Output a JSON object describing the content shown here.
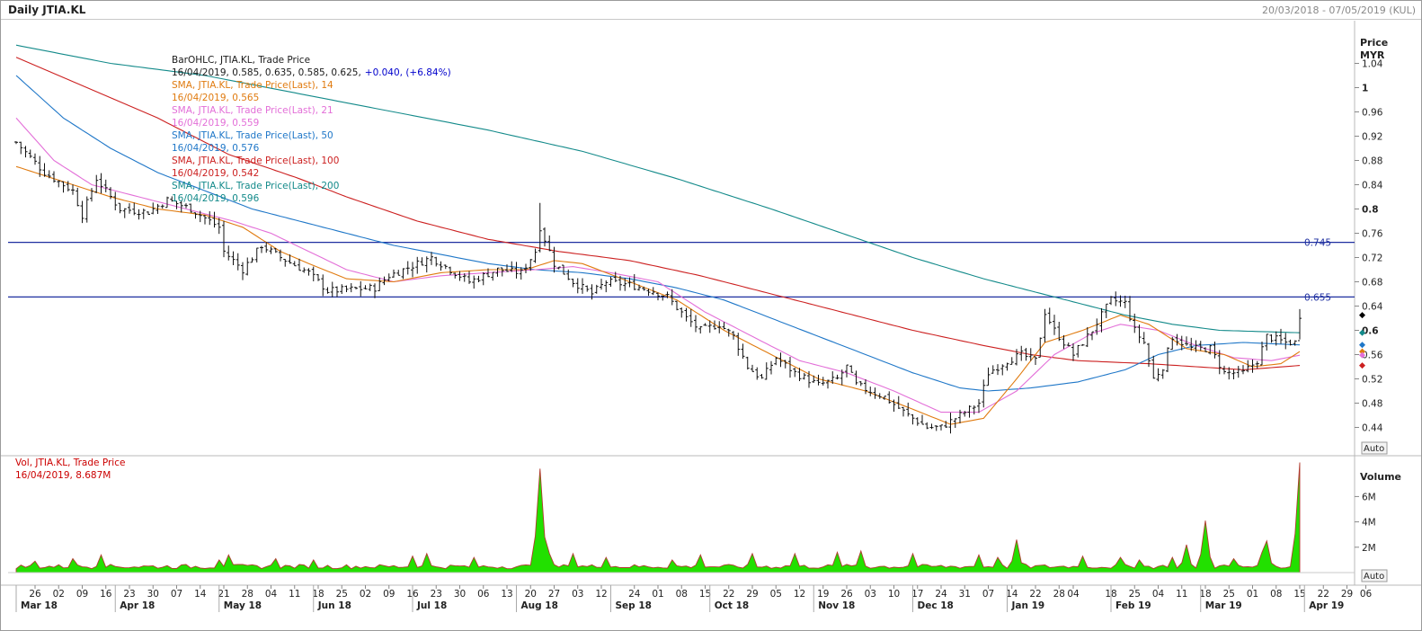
{
  "header": {
    "title": "Daily JTIA.KL",
    "range": "20/03/2018 - 07/05/2019 (KUL)"
  },
  "price_panel": {
    "axis_title": "Price",
    "axis_unit": "MYR",
    "auto_label": "Auto",
    "legend": [
      {
        "text": "BarOHLC, JTIA.KL, Trade Price",
        "color": "#1a1a1a"
      },
      {
        "text": "16/04/2019, 0.585, 0.635, 0.585, 0.625,",
        "color": "#1a1a1a",
        "extra": "+0.040, (+6.84%)",
        "extra_color": "#0000cc"
      },
      {
        "text": "SMA, JTIA.KL, Trade Price(Last), 14",
        "color": "#e07b10"
      },
      {
        "text": "16/04/2019, 0.565",
        "color": "#e07b10"
      },
      {
        "text": "SMA, JTIA.KL, Trade Price(Last), 21",
        "color": "#e36fd8"
      },
      {
        "text": "16/04/2019, 0.559",
        "color": "#e36fd8"
      },
      {
        "text": "SMA, JTIA.KL, Trade Price(Last), 50",
        "color": "#1f77c8"
      },
      {
        "text": "16/04/2019, 0.576",
        "color": "#1f77c8"
      },
      {
        "text": "SMA, JTIA.KL, Trade Price(Last), 100",
        "color": "#cc2020"
      },
      {
        "text": "16/04/2019, 0.542",
        "color": "#cc2020"
      },
      {
        "text": "SMA, JTIA.KL, Trade Price(Last), 200",
        "color": "#138a8a"
      },
      {
        "text": "16/04/2019, 0.596",
        "color": "#138a8a"
      }
    ],
    "hlines": [
      {
        "value": 0.745,
        "label": "0.745"
      },
      {
        "value": 0.655,
        "label": "0.655"
      }
    ]
  },
  "volume_panel": {
    "axis_title": "Volume",
    "auto_label": "Auto",
    "legend": [
      {
        "text": "Vol, JTIA.KL, Trade Price",
        "color": "#cc0000"
      },
      {
        "text": "16/04/2019, 8.687M",
        "color": "#cc0000"
      }
    ]
  },
  "x_axis": {
    "day_ticks": [
      {
        "i": 4,
        "label": "26"
      },
      {
        "i": 9,
        "label": "02"
      },
      {
        "i": 14,
        "label": "09"
      },
      {
        "i": 19,
        "label": "16"
      },
      {
        "i": 24,
        "label": "23"
      },
      {
        "i": 29,
        "label": "30"
      },
      {
        "i": 34,
        "label": "07"
      },
      {
        "i": 39,
        "label": "14"
      },
      {
        "i": 44,
        "label": "21"
      },
      {
        "i": 49,
        "label": "28"
      },
      {
        "i": 54,
        "label": "04"
      },
      {
        "i": 59,
        "label": "11"
      },
      {
        "i": 64,
        "label": "18"
      },
      {
        "i": 69,
        "label": "25"
      },
      {
        "i": 74,
        "label": "02"
      },
      {
        "i": 79,
        "label": "09"
      },
      {
        "i": 84,
        "label": "16"
      },
      {
        "i": 89,
        "label": "23"
      },
      {
        "i": 94,
        "label": "30"
      },
      {
        "i": 99,
        "label": "06"
      },
      {
        "i": 104,
        "label": "13"
      },
      {
        "i": 109,
        "label": "20"
      },
      {
        "i": 114,
        "label": "27"
      },
      {
        "i": 119,
        "label": "03"
      },
      {
        "i": 124,
        "label": "12"
      },
      {
        "i": 131,
        "label": "24"
      },
      {
        "i": 136,
        "label": "01"
      },
      {
        "i": 141,
        "label": "08"
      },
      {
        "i": 146,
        "label": "15"
      },
      {
        "i": 151,
        "label": "22"
      },
      {
        "i": 156,
        "label": "29"
      },
      {
        "i": 161,
        "label": "05"
      },
      {
        "i": 166,
        "label": "12"
      },
      {
        "i": 171,
        "label": "19"
      },
      {
        "i": 176,
        "label": "26"
      },
      {
        "i": 181,
        "label": "03"
      },
      {
        "i": 186,
        "label": "10"
      },
      {
        "i": 191,
        "label": "17"
      },
      {
        "i": 196,
        "label": "24"
      },
      {
        "i": 201,
        "label": "31"
      },
      {
        "i": 206,
        "label": "07"
      },
      {
        "i": 211,
        "label": "14"
      },
      {
        "i": 216,
        "label": "22"
      },
      {
        "i": 221,
        "label": "28"
      },
      {
        "i": 224,
        "label": "04"
      },
      {
        "i": 232,
        "label": "18"
      },
      {
        "i": 237,
        "label": "25"
      },
      {
        "i": 242,
        "label": "04"
      },
      {
        "i": 247,
        "label": "11"
      },
      {
        "i": 252,
        "label": "18"
      },
      {
        "i": 257,
        "label": "25"
      },
      {
        "i": 262,
        "label": "01"
      },
      {
        "i": 267,
        "label": "08"
      },
      {
        "i": 272,
        "label": "15"
      },
      {
        "i": 277,
        "label": "22"
      },
      {
        "i": 282,
        "label": "29"
      },
      {
        "i": 286,
        "label": "06"
      }
    ],
    "month_ticks": [
      {
        "i": 0,
        "label": "Mar 18"
      },
      {
        "i": 21,
        "label": "Apr 18"
      },
      {
        "i": 43,
        "label": "May 18"
      },
      {
        "i": 63,
        "label": "Jun 18"
      },
      {
        "i": 84,
        "label": "Jul 18"
      },
      {
        "i": 106,
        "label": "Aug 18"
      },
      {
        "i": 126,
        "label": "Sep 18"
      },
      {
        "i": 147,
        "label": "Oct 18"
      },
      {
        "i": 169,
        "label": "Nov 18"
      },
      {
        "i": 190,
        "label": "Dec 18"
      },
      {
        "i": 210,
        "label": "Jan 19"
      },
      {
        "i": 232,
        "label": "Feb 19"
      },
      {
        "i": 251,
        "label": "Mar 19"
      },
      {
        "i": 273,
        "label": "Apr 19"
      }
    ]
  },
  "chart_data": {
    "type": "line",
    "title": "Daily JTIA.KL",
    "ylabel": "Price MYR",
    "ylim": [
      0.42,
      1.07
    ],
    "y_ticks": [
      1.04,
      1.0,
      0.96,
      0.92,
      0.88,
      0.84,
      0.8,
      0.76,
      0.72,
      0.68,
      0.64,
      0.6,
      0.56,
      0.52,
      0.48,
      0.44
    ],
    "y_ticks_bold": [
      1.0,
      0.8,
      0.6
    ],
    "bar_count": 273,
    "x_range": [
      "20/03/2018",
      "07/05/2019"
    ],
    "close_anchors": [
      [
        0,
        0.91
      ],
      [
        6,
        0.86
      ],
      [
        12,
        0.83
      ],
      [
        14,
        0.79
      ],
      [
        17,
        0.85
      ],
      [
        22,
        0.8
      ],
      [
        28,
        0.795
      ],
      [
        32,
        0.815
      ],
      [
        37,
        0.8
      ],
      [
        43,
        0.77
      ],
      [
        44,
        0.73
      ],
      [
        48,
        0.7
      ],
      [
        52,
        0.74
      ],
      [
        56,
        0.72
      ],
      [
        62,
        0.695
      ],
      [
        66,
        0.665
      ],
      [
        76,
        0.67
      ],
      [
        79,
        0.69
      ],
      [
        85,
        0.71
      ],
      [
        88,
        0.72
      ],
      [
        92,
        0.7
      ],
      [
        96,
        0.68
      ],
      [
        102,
        0.7
      ],
      [
        107,
        0.695
      ],
      [
        110,
        0.73
      ],
      [
        111,
        0.77
      ],
      [
        112,
        0.75
      ],
      [
        114,
        0.71
      ],
      [
        118,
        0.68
      ],
      [
        122,
        0.66
      ],
      [
        125,
        0.68
      ],
      [
        130,
        0.675
      ],
      [
        135,
        0.665
      ],
      [
        138,
        0.655
      ],
      [
        142,
        0.62
      ],
      [
        145,
        0.6
      ],
      [
        149,
        0.61
      ],
      [
        152,
        0.59
      ],
      [
        155,
        0.54
      ],
      [
        158,
        0.52
      ],
      [
        161,
        0.555
      ],
      [
        165,
        0.53
      ],
      [
        170,
        0.51
      ],
      [
        174,
        0.52
      ],
      [
        176,
        0.54
      ],
      [
        178,
        0.51
      ],
      [
        184,
        0.49
      ],
      [
        189,
        0.46
      ],
      [
        193,
        0.44
      ],
      [
        196,
        0.44
      ],
      [
        200,
        0.46
      ],
      [
        204,
        0.48
      ],
      [
        206,
        0.53
      ],
      [
        210,
        0.55
      ],
      [
        213,
        0.56
      ],
      [
        216,
        0.55
      ],
      [
        218,
        0.63
      ],
      [
        220,
        0.6
      ],
      [
        224,
        0.56
      ],
      [
        228,
        0.6
      ],
      [
        232,
        0.65
      ],
      [
        235,
        0.645
      ],
      [
        237,
        0.6
      ],
      [
        239,
        0.58
      ],
      [
        241,
        0.52
      ],
      [
        243,
        0.54
      ],
      [
        245,
        0.59
      ],
      [
        249,
        0.57
      ],
      [
        253,
        0.57
      ],
      [
        256,
        0.53
      ],
      [
        260,
        0.53
      ],
      [
        263,
        0.55
      ],
      [
        265,
        0.59
      ],
      [
        269,
        0.58
      ],
      [
        271,
        0.58
      ],
      [
        272,
        0.625
      ]
    ],
    "sma_anchors": {
      "sma14": [
        [
          0,
          0.87
        ],
        [
          10,
          0.845
        ],
        [
          20,
          0.82
        ],
        [
          30,
          0.8
        ],
        [
          40,
          0.79
        ],
        [
          48,
          0.77
        ],
        [
          56,
          0.73
        ],
        [
          62,
          0.71
        ],
        [
          70,
          0.685
        ],
        [
          80,
          0.68
        ],
        [
          90,
          0.695
        ],
        [
          100,
          0.7
        ],
        [
          108,
          0.7
        ],
        [
          114,
          0.715
        ],
        [
          120,
          0.71
        ],
        [
          130,
          0.68
        ],
        [
          140,
          0.65
        ],
        [
          150,
          0.6
        ],
        [
          160,
          0.56
        ],
        [
          170,
          0.52
        ],
        [
          180,
          0.5
        ],
        [
          190,
          0.47
        ],
        [
          198,
          0.445
        ],
        [
          205,
          0.455
        ],
        [
          212,
          0.52
        ],
        [
          218,
          0.58
        ],
        [
          226,
          0.6
        ],
        [
          234,
          0.625
        ],
        [
          240,
          0.61
        ],
        [
          248,
          0.57
        ],
        [
          256,
          0.56
        ],
        [
          262,
          0.54
        ],
        [
          268,
          0.545
        ],
        [
          272,
          0.565
        ]
      ],
      "sma21": [
        [
          0,
          0.95
        ],
        [
          8,
          0.88
        ],
        [
          16,
          0.84
        ],
        [
          26,
          0.82
        ],
        [
          36,
          0.8
        ],
        [
          46,
          0.78
        ],
        [
          54,
          0.76
        ],
        [
          62,
          0.73
        ],
        [
          70,
          0.7
        ],
        [
          80,
          0.68
        ],
        [
          90,
          0.69
        ],
        [
          100,
          0.695
        ],
        [
          110,
          0.7
        ],
        [
          118,
          0.705
        ],
        [
          126,
          0.695
        ],
        [
          136,
          0.68
        ],
        [
          146,
          0.63
        ],
        [
          156,
          0.59
        ],
        [
          166,
          0.55
        ],
        [
          176,
          0.53
        ],
        [
          186,
          0.5
        ],
        [
          196,
          0.465
        ],
        [
          204,
          0.465
        ],
        [
          212,
          0.5
        ],
        [
          220,
          0.56
        ],
        [
          228,
          0.595
        ],
        [
          234,
          0.61
        ],
        [
          242,
          0.6
        ],
        [
          250,
          0.575
        ],
        [
          258,
          0.555
        ],
        [
          266,
          0.55
        ],
        [
          272,
          0.559
        ]
      ],
      "sma50": [
        [
          0,
          1.02
        ],
        [
          10,
          0.95
        ],
        [
          20,
          0.9
        ],
        [
          30,
          0.86
        ],
        [
          40,
          0.83
        ],
        [
          50,
          0.8
        ],
        [
          60,
          0.78
        ],
        [
          70,
          0.76
        ],
        [
          80,
          0.74
        ],
        [
          90,
          0.725
        ],
        [
          100,
          0.71
        ],
        [
          110,
          0.7
        ],
        [
          120,
          0.695
        ],
        [
          130,
          0.685
        ],
        [
          140,
          0.67
        ],
        [
          150,
          0.65
        ],
        [
          160,
          0.62
        ],
        [
          170,
          0.59
        ],
        [
          180,
          0.56
        ],
        [
          190,
          0.53
        ],
        [
          200,
          0.505
        ],
        [
          206,
          0.5
        ],
        [
          215,
          0.505
        ],
        [
          225,
          0.515
        ],
        [
          235,
          0.535
        ],
        [
          242,
          0.56
        ],
        [
          250,
          0.575
        ],
        [
          260,
          0.58
        ],
        [
          272,
          0.576
        ]
      ],
      "sma100": [
        [
          0,
          1.05
        ],
        [
          15,
          1.0
        ],
        [
          30,
          0.95
        ],
        [
          45,
          0.89
        ],
        [
          60,
          0.85
        ],
        [
          70,
          0.82
        ],
        [
          85,
          0.78
        ],
        [
          100,
          0.75
        ],
        [
          115,
          0.73
        ],
        [
          130,
          0.715
        ],
        [
          145,
          0.69
        ],
        [
          160,
          0.66
        ],
        [
          175,
          0.63
        ],
        [
          190,
          0.6
        ],
        [
          205,
          0.575
        ],
        [
          215,
          0.56
        ],
        [
          225,
          0.55
        ],
        [
          240,
          0.545
        ],
        [
          250,
          0.54
        ],
        [
          260,
          0.535
        ],
        [
          272,
          0.542
        ]
      ],
      "sma200": [
        [
          0,
          1.07
        ],
        [
          20,
          1.04
        ],
        [
          40,
          1.02
        ],
        [
          60,
          0.99
        ],
        [
          80,
          0.96
        ],
        [
          100,
          0.93
        ],
        [
          120,
          0.895
        ],
        [
          140,
          0.85
        ],
        [
          160,
          0.8
        ],
        [
          175,
          0.76
        ],
        [
          190,
          0.72
        ],
        [
          205,
          0.685
        ],
        [
          215,
          0.665
        ],
        [
          225,
          0.645
        ],
        [
          235,
          0.625
        ],
        [
          245,
          0.61
        ],
        [
          255,
          0.6
        ],
        [
          272,
          0.596
        ]
      ]
    },
    "volume": {
      "ylabel": "Volume",
      "y_ticks": [
        {
          "v": 6,
          "label": "6M"
        },
        {
          "v": 4,
          "label": "4M"
        },
        {
          "v": 2,
          "label": "2M"
        }
      ],
      "ylim": [
        0,
        8.8
      ],
      "baseline": 0.3,
      "spikes": [
        [
          111,
          8.2
        ],
        [
          112,
          2.8
        ],
        [
          113,
          1.5
        ],
        [
          272,
          8.687
        ],
        [
          271,
          1.2
        ],
        [
          265,
          2.5
        ],
        [
          264,
          1.6
        ],
        [
          252,
          4.1
        ],
        [
          248,
          2.2
        ],
        [
          245,
          1.2
        ],
        [
          212,
          2.6
        ],
        [
          208,
          1.2
        ],
        [
          204,
          1.4
        ],
        [
          190,
          1.5
        ],
        [
          179,
          1.7
        ],
        [
          174,
          1.6
        ],
        [
          165,
          1.5
        ],
        [
          156,
          1.5
        ],
        [
          145,
          1.4
        ],
        [
          139,
          1.0
        ],
        [
          125,
          1.2
        ],
        [
          118,
          1.5
        ],
        [
          97,
          1.2
        ],
        [
          87,
          1.5
        ],
        [
          84,
          1.3
        ],
        [
          63,
          1.0
        ],
        [
          55,
          1.1
        ],
        [
          45,
          1.4
        ],
        [
          43,
          1.0
        ],
        [
          18,
          1.4
        ],
        [
          12,
          1.1
        ],
        [
          4,
          0.9
        ],
        [
          226,
          1.3
        ],
        [
          234,
          1.2
        ],
        [
          238,
          1.0
        ],
        [
          258,
          1.1
        ]
      ]
    },
    "markers": [
      {
        "value": 0.625,
        "color": "#000000"
      },
      {
        "value": 0.596,
        "color": "#138a8a"
      },
      {
        "value": 0.576,
        "color": "#1f77c8"
      },
      {
        "value": 0.565,
        "color": "#e07b10"
      },
      {
        "value": 0.559,
        "color": "#e36fd8"
      },
      {
        "value": 0.542,
        "color": "#cc2020"
      }
    ]
  }
}
